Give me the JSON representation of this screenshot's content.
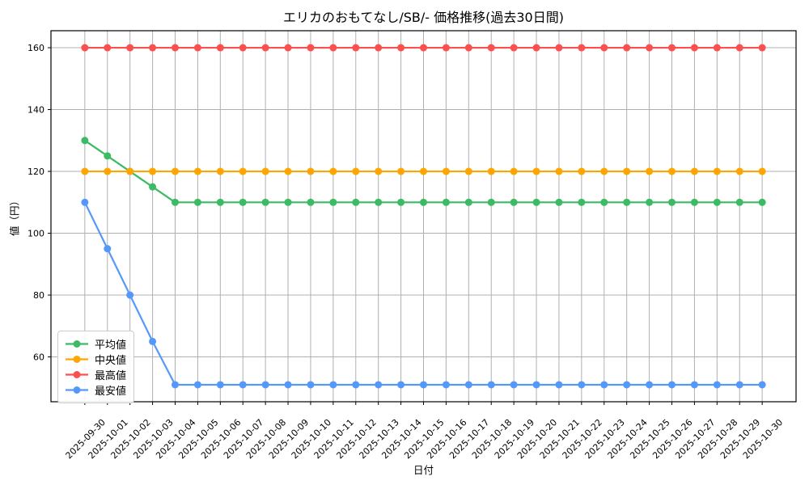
{
  "chart_data": {
    "type": "line",
    "title": "エリカのおもてなし/SB/- 価格推移(過去30日間)",
    "xlabel": "日付",
    "ylabel": "値（円）",
    "grid": true,
    "legend_position": "lower left",
    "ylim": [
      45.5,
      165.5
    ],
    "yticks": [
      60,
      80,
      100,
      120,
      140,
      160
    ],
    "categories": [
      "2025-09-30",
      "2025-10-01",
      "2025-10-02",
      "2025-10-03",
      "2025-10-04",
      "2025-10-05",
      "2025-10-06",
      "2025-10-07",
      "2025-10-08",
      "2025-10-09",
      "2025-10-10",
      "2025-10-11",
      "2025-10-12",
      "2025-10-13",
      "2025-10-14",
      "2025-10-15",
      "2025-10-16",
      "2025-10-17",
      "2025-10-18",
      "2025-10-19",
      "2025-10-20",
      "2025-10-21",
      "2025-10-22",
      "2025-10-23",
      "2025-10-24",
      "2025-10-25",
      "2025-10-26",
      "2025-10-27",
      "2025-10-28",
      "2025-10-29",
      "2025-10-30"
    ],
    "series": [
      {
        "key": "average",
        "name": "平均値",
        "color": "#3cba64",
        "values": [
          130,
          125,
          120,
          115,
          110,
          110,
          110,
          110,
          110,
          110,
          110,
          110,
          110,
          110,
          110,
          110,
          110,
          110,
          110,
          110,
          110,
          110,
          110,
          110,
          110,
          110,
          110,
          110,
          110,
          110,
          110
        ]
      },
      {
        "key": "median",
        "name": "中央値",
        "color": "#ffa502",
        "values": [
          120,
          120,
          120,
          120,
          120,
          120,
          120,
          120,
          120,
          120,
          120,
          120,
          120,
          120,
          120,
          120,
          120,
          120,
          120,
          120,
          120,
          120,
          120,
          120,
          120,
          120,
          120,
          120,
          120,
          120,
          120
        ]
      },
      {
        "key": "max",
        "name": "最高値",
        "color": "#fc4f4f",
        "values": [
          160,
          160,
          160,
          160,
          160,
          160,
          160,
          160,
          160,
          160,
          160,
          160,
          160,
          160,
          160,
          160,
          160,
          160,
          160,
          160,
          160,
          160,
          160,
          160,
          160,
          160,
          160,
          160,
          160,
          160,
          160
        ]
      },
      {
        "key": "min",
        "name": "最安値",
        "color": "#5598fc",
        "values": [
          110,
          95,
          80,
          65,
          51,
          51,
          51,
          51,
          51,
          51,
          51,
          51,
          51,
          51,
          51,
          51,
          51,
          51,
          51,
          51,
          51,
          51,
          51,
          51,
          51,
          51,
          51,
          51,
          51,
          51,
          51
        ]
      }
    ],
    "style": {
      "grid_color": "#b0b0b0",
      "spine_color": "#000000",
      "tick_label_size": 11,
      "marker_radius": 4.5,
      "line_width": 2.2
    }
  }
}
